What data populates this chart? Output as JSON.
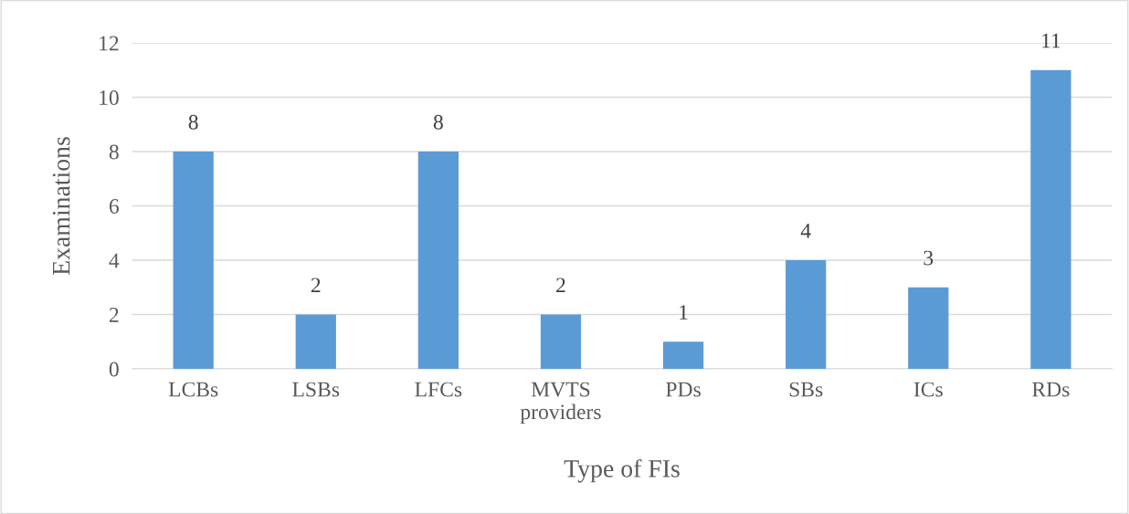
{
  "chart_data": {
    "type": "bar",
    "xlabel": "Type of FIs",
    "ylabel": "Examinations",
    "categories": [
      "LCBs",
      "LSBs",
      "LFCs",
      "MVTS\nproviders",
      "PDs",
      "SBs",
      "ICs",
      "RDs"
    ],
    "values": [
      8,
      2,
      8,
      2,
      1,
      4,
      3,
      11
    ],
    "color": "#5b9bd5",
    "ylim": [
      0,
      12
    ],
    "yticks": [
      0,
      2,
      4,
      6,
      8,
      10,
      12
    ],
    "grid": "y",
    "data_labels": true
  }
}
